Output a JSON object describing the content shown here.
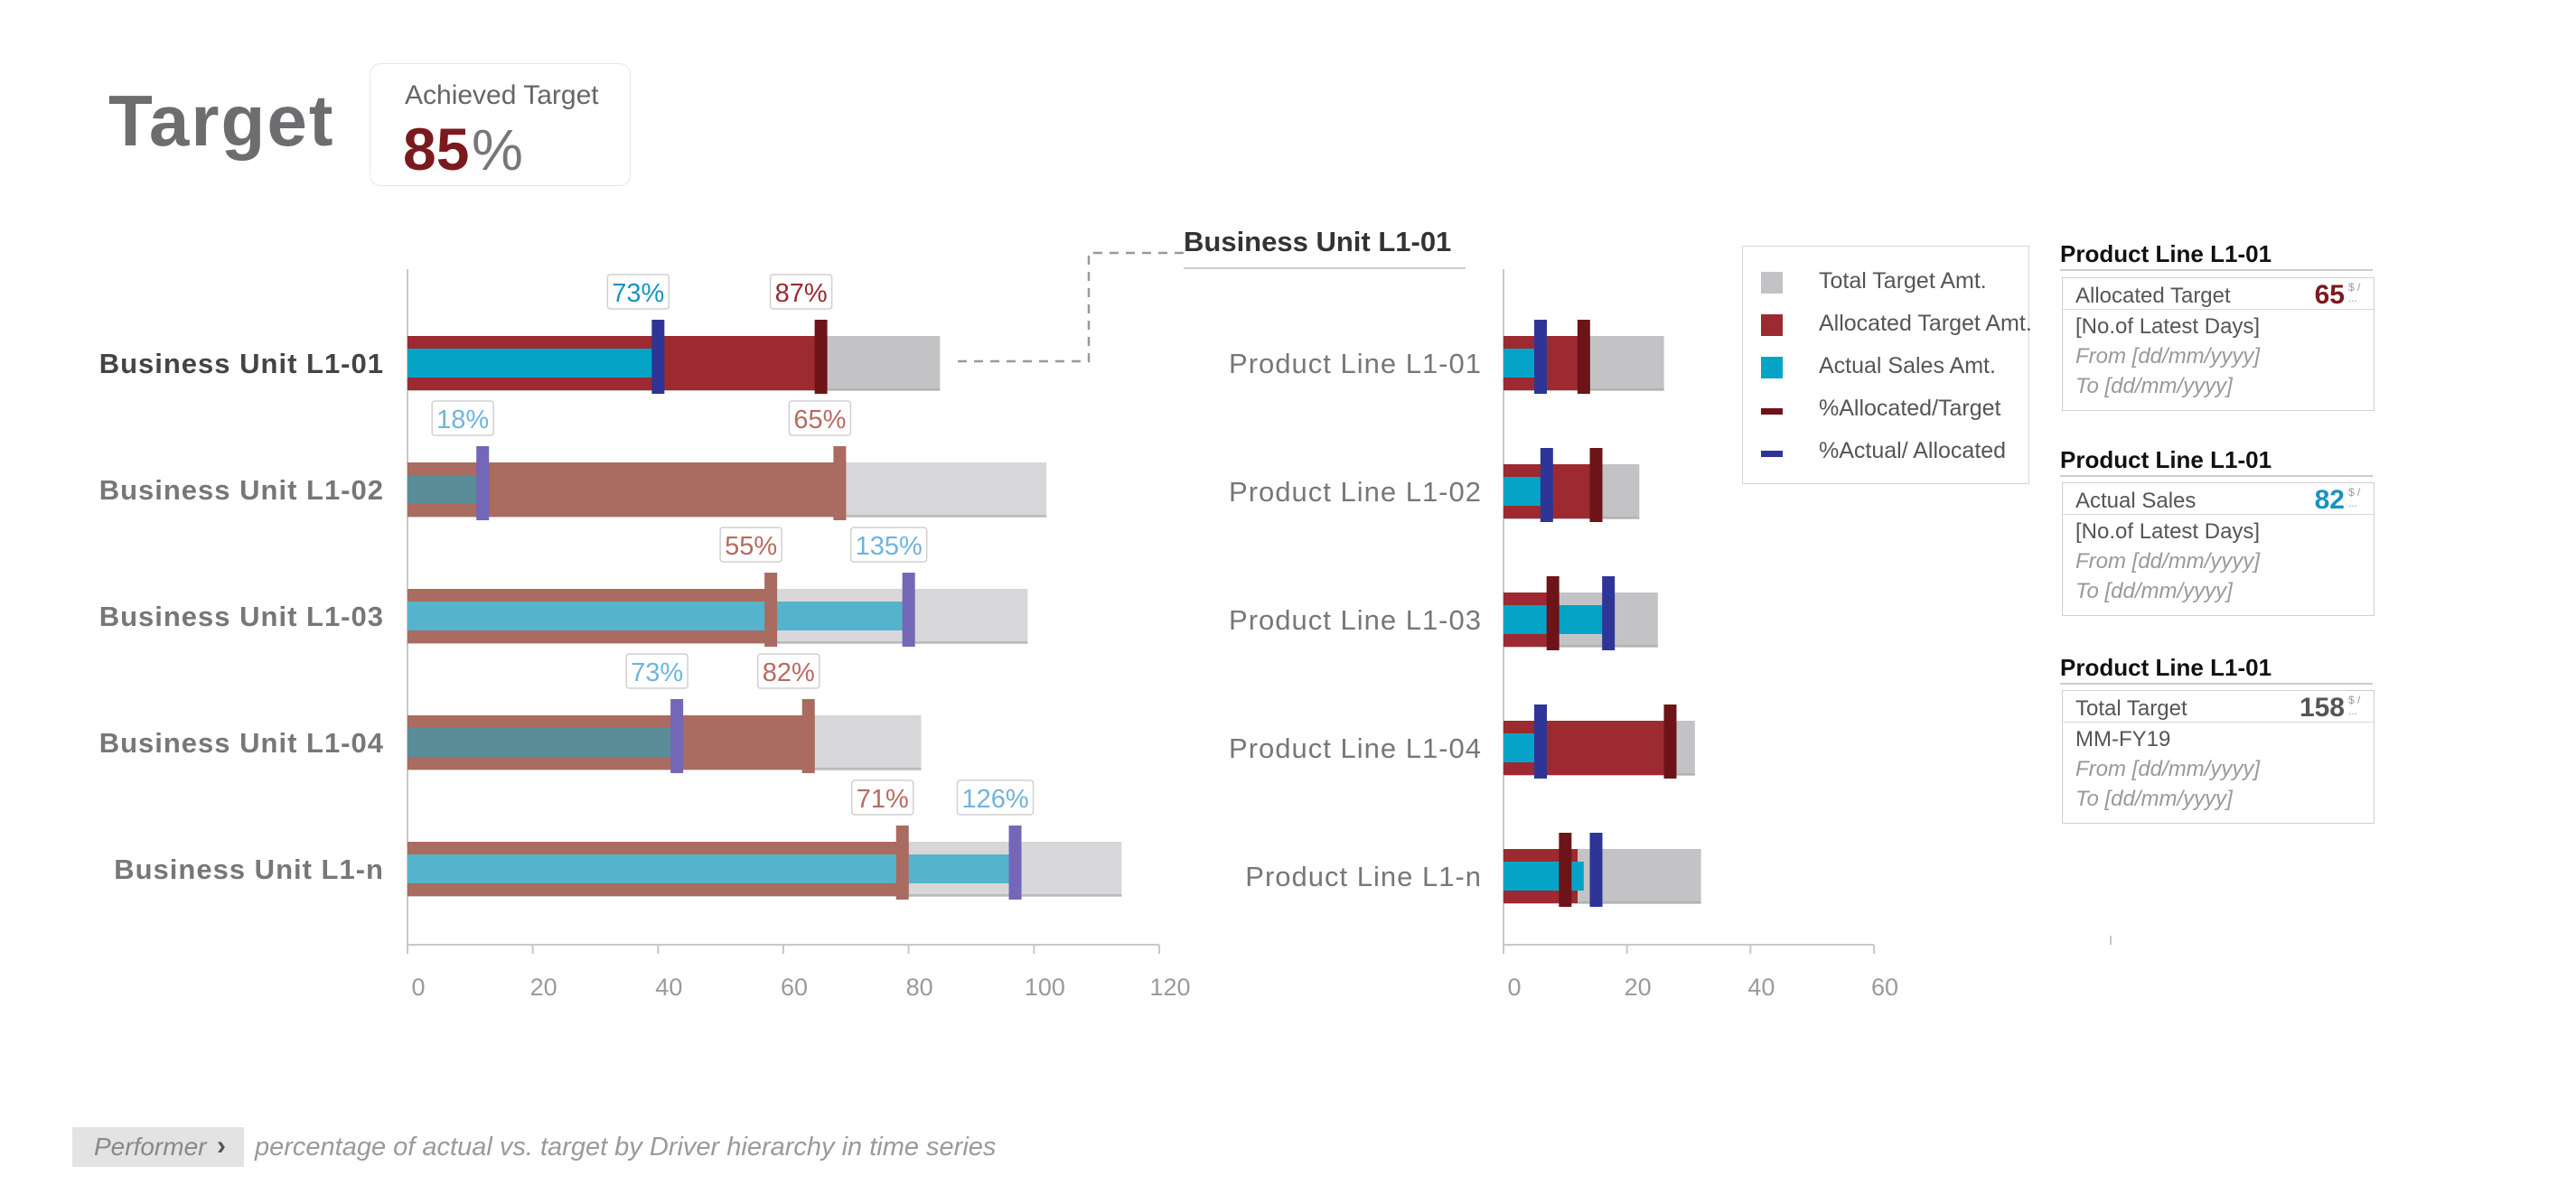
{
  "header": {
    "title": "Target",
    "kpi": {
      "label": "Achieved Target",
      "value": "85",
      "unit": "%"
    }
  },
  "colors": {
    "total": "#c3c3c5",
    "total_light": "#d7d7d9",
    "allocated": "#9c2a30",
    "allocated_muted": "#aa6b60",
    "actual": "#05a4c6",
    "actual_muted": "#5b8d98",
    "actual_light": "#55b4cc",
    "pct_allocated_marker": "#6d1418",
    "pct_actual_marker": "#2f3596",
    "pct_actual_marker_muted": "#7467b8",
    "pct_allocated_text": "#9c2a30",
    "pct_allocated_text_muted": "#b86a60",
    "pct_actual_text": "#1793c0",
    "pct_actual_text_muted": "#70b4dc"
  },
  "chart_data": [
    {
      "type": "bar",
      "orientation": "horizontal",
      "categories": [
        "Business Unit L1-01",
        "Business Unit L1-02",
        "Business Unit L1-03",
        "Business Unit L1-04",
        "Business Unit L1-n"
      ],
      "series": [
        {
          "name": "Total Target Amt.",
          "values": [
            85,
            102,
            99,
            82,
            114
          ]
        },
        {
          "name": "Allocated Target Amt.",
          "values": [
            67,
            70,
            58,
            65,
            80
          ]
        },
        {
          "name": "Actual Sales Amt.",
          "values": [
            40,
            12,
            80,
            42,
            97
          ]
        },
        {
          "name": "%Allocated/Target",
          "values": [
            66,
            69,
            58,
            64,
            79
          ],
          "labels": [
            "87%",
            "65%",
            "55%",
            "82%",
            "71%"
          ]
        },
        {
          "name": "%Actual/ Allocated",
          "values": [
            40,
            12,
            80,
            43,
            97
          ],
          "labels": [
            "73%",
            "18%",
            "135%",
            "73%",
            "126%"
          ]
        }
      ],
      "xticks": [
        "0",
        "20",
        "40",
        "60",
        "80",
        "100",
        "120"
      ],
      "xlim": [
        0,
        120
      ],
      "highlighted_category": "Business Unit L1-01"
    },
    {
      "type": "bar",
      "orientation": "horizontal",
      "title": "Business Unit L1-01",
      "categories": [
        "Product Line L1-01",
        "Product Line L1-02",
        "Product Line L1-03",
        "Product Line L1-04",
        "Product Line L1-n"
      ],
      "series": [
        {
          "name": "Total Target Amt.",
          "values": [
            26,
            22,
            25,
            31,
            32
          ]
        },
        {
          "name": "Allocated Target Amt.",
          "values": [
            14,
            16,
            9,
            27,
            12
          ]
        },
        {
          "name": "Actual Sales Amt.",
          "values": [
            7,
            8,
            16,
            6,
            13
          ]
        },
        {
          "name": "%Allocated/Target",
          "values": [
            13,
            15,
            8,
            27,
            10
          ]
        },
        {
          "name": "%Actual/ Allocated",
          "values": [
            6,
            7,
            17,
            6,
            15
          ]
        }
      ],
      "xticks": [
        "0",
        "20",
        "40",
        "60"
      ],
      "xlim": [
        0,
        60
      ],
      "legend_position": "right"
    }
  ],
  "details": [
    {
      "title": "Product Line L1-01",
      "label": "Allocated Target",
      "value": "65",
      "unit": "$ / ...",
      "lines": [
        "[No.of Latest Days]",
        "From [dd/mm/yyyy]",
        "To [dd/mm/yyyy]"
      ]
    },
    {
      "title": "Product Line L1-01",
      "label": "Actual Sales",
      "value": "82",
      "unit": "$ / ...",
      "lines": [
        "[No.of Latest Days]",
        "From [dd/mm/yyyy]",
        "To [dd/mm/yyyy]"
      ]
    },
    {
      "title": "Product Line L1-01",
      "label": "Total Target",
      "value": "158",
      "unit": "$ / ...",
      "lines": [
        "MM-FY19",
        "From [dd/mm/yyyy]",
        "To [dd/mm/yyyy]"
      ]
    }
  ],
  "footer": {
    "tag": "Performer",
    "caption": "percentage of actual vs. target by Driver hierarchy in time series"
  }
}
